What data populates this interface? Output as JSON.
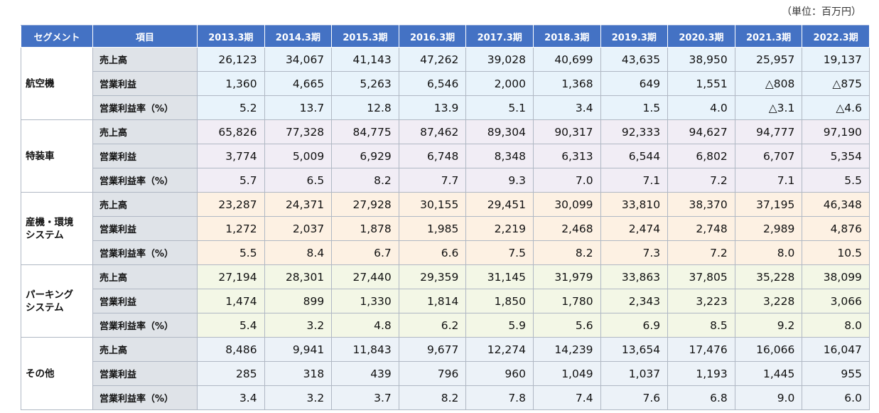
{
  "unit_label": "（単位：百万円）",
  "header": {
    "segment": "セグメント",
    "item": "項目",
    "years": [
      "2013.3期",
      "2014.3期",
      "2015.3期",
      "2016.3期",
      "2017.3期",
      "2018.3期",
      "2019.3期",
      "2020.3期",
      "2021.3期",
      "2022.3期"
    ]
  },
  "segments": [
    {
      "name": "航空機",
      "rows": [
        {
          "item": "売上高",
          "values": [
            "26,123",
            "34,067",
            "41,143",
            "47,262",
            "39,028",
            "40,699",
            "43,635",
            "38,950",
            "25,957",
            "19,137"
          ]
        },
        {
          "item": "営業利益",
          "values": [
            "1,360",
            "4,665",
            "5,263",
            "6,546",
            "2,000",
            "1,368",
            "649",
            "1,551",
            "△808",
            "△875"
          ]
        },
        {
          "item": "営業利益率（%）",
          "values": [
            "5.2",
            "13.7",
            "12.8",
            "13.9",
            "5.1",
            "3.4",
            "1.5",
            "4.0",
            "△3.1",
            "△4.6"
          ]
        }
      ]
    },
    {
      "name": "特装車",
      "rows": [
        {
          "item": "売上高",
          "values": [
            "65,826",
            "77,328",
            "84,775",
            "87,462",
            "89,304",
            "90,317",
            "92,333",
            "94,627",
            "94,777",
            "97,190"
          ]
        },
        {
          "item": "営業利益",
          "values": [
            "3,774",
            "5,009",
            "6,929",
            "6,748",
            "8,348",
            "6,313",
            "6,544",
            "6,802",
            "6,707",
            "5,354"
          ]
        },
        {
          "item": "営業利益率（%）",
          "values": [
            "5.7",
            "6.5",
            "8.2",
            "7.7",
            "9.3",
            "7.0",
            "7.1",
            "7.2",
            "7.1",
            "5.5"
          ]
        }
      ]
    },
    {
      "name": "産機・環境システム",
      "rows": [
        {
          "item": "売上高",
          "values": [
            "23,287",
            "24,371",
            "27,928",
            "30,155",
            "29,451",
            "30,099",
            "33,810",
            "38,370",
            "37,195",
            "46,348"
          ]
        },
        {
          "item": "営業利益",
          "values": [
            "1,272",
            "2,037",
            "1,878",
            "1,985",
            "2,219",
            "2,468",
            "2,474",
            "2,748",
            "2,989",
            "4,876"
          ]
        },
        {
          "item": "営業利益率（%）",
          "values": [
            "5.5",
            "8.4",
            "6.7",
            "6.6",
            "7.5",
            "8.2",
            "7.3",
            "7.2",
            "8.0",
            "10.5"
          ]
        }
      ]
    },
    {
      "name": "パーキングシステム",
      "rows": [
        {
          "item": "売上高",
          "values": [
            "27,194",
            "28,301",
            "27,440",
            "29,359",
            "31,145",
            "31,979",
            "33,863",
            "37,805",
            "35,228",
            "38,099"
          ]
        },
        {
          "item": "営業利益",
          "values": [
            "1,474",
            "899",
            "1,330",
            "1,814",
            "1,850",
            "1,780",
            "2,343",
            "3,223",
            "3,228",
            "3,066"
          ]
        },
        {
          "item": "営業利益率（%）",
          "values": [
            "5.4",
            "3.2",
            "4.8",
            "6.2",
            "5.9",
            "5.6",
            "6.9",
            "8.5",
            "9.2",
            "8.0"
          ]
        }
      ]
    },
    {
      "name": "その他",
      "rows": [
        {
          "item": "売上高",
          "values": [
            "8,486",
            "9,941",
            "11,843",
            "9,677",
            "12,274",
            "14,239",
            "13,654",
            "17,476",
            "16,066",
            "16,047"
          ]
        },
        {
          "item": "営業利益",
          "values": [
            "285",
            "318",
            "439",
            "796",
            "960",
            "1,049",
            "1,037",
            "1,193",
            "1,445",
            "955"
          ]
        },
        {
          "item": "営業利益率（%）",
          "values": [
            "3.4",
            "3.2",
            "3.7",
            "8.2",
            "7.8",
            "7.4",
            "7.6",
            "6.8",
            "9.0",
            "6.0"
          ]
        }
      ]
    }
  ]
}
